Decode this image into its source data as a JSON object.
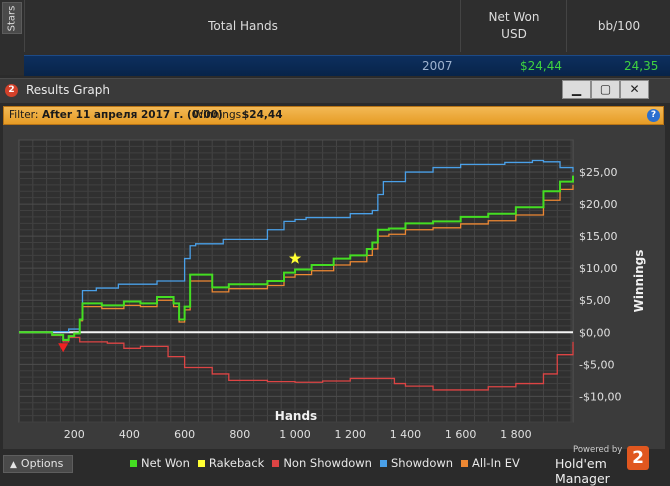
{
  "stats_table": {
    "side_tab": "Stars",
    "columns": [
      "Total Hands",
      "Net Won\nUSD",
      "bb/100"
    ],
    "summary": {
      "total_hands": "2007",
      "net_won": "$24,44",
      "bb100": "24,35"
    }
  },
  "window": {
    "title": "Results Graph",
    "icon": "2",
    "buttons": {
      "minimize": "▁",
      "maximize": "▢",
      "close": "✕"
    }
  },
  "filter": {
    "label": "Filter:",
    "text": "After 11 апреля 2017 г. (0:00)",
    "winnings_label": "Winnings:",
    "winnings": "$24,44"
  },
  "footer": {
    "options_label": "Options",
    "powered_by": "Powered by",
    "brand": "Hold'em Manager",
    "brand_logo": "2"
  },
  "colors": {
    "net_won": "#44dd22",
    "rakeback": "#ffff33",
    "non_showdown": "#dd4444",
    "showdown": "#4aa0e8",
    "all_in_ev": "#ee8833"
  },
  "chart_data": {
    "type": "line",
    "xlabel": "Hands",
    "ylabel": "Winnings",
    "xlim": [
      0,
      2007
    ],
    "ylim": [
      -14,
      30
    ],
    "x_ticks": [
      200,
      400,
      600,
      800,
      1000,
      1200,
      1400,
      1600,
      1800
    ],
    "x_tick_labels": [
      "200",
      "400",
      "600",
      "800",
      "1 000",
      "1 200",
      "1 400",
      "1 600",
      "1 800"
    ],
    "y_ticks": [
      -10,
      -5,
      0,
      5,
      10,
      15,
      20,
      25
    ],
    "y_tick_labels": [
      "-$10,00",
      "-$5,00",
      "$0,00",
      "$5,00",
      "$10,00",
      "$15,00",
      "$20,00",
      "$25,00"
    ],
    "grid": true,
    "legend_position": "bottom",
    "series": [
      {
        "name": "Net Won",
        "color": "#44dd22",
        "x": [
          0,
          60,
          120,
          160,
          180,
          200,
          220,
          230,
          300,
          380,
          440,
          500,
          560,
          580,
          600,
          620,
          700,
          760,
          900,
          960,
          1000,
          1060,
          1140,
          1200,
          1260,
          1280,
          1300,
          1340,
          1400,
          1500,
          1600,
          1700,
          1800,
          1900,
          1960,
          2007
        ],
        "y": [
          0,
          0,
          -0.4,
          -1.2,
          -0.6,
          -0.2,
          2.0,
          4.5,
          4.2,
          4.8,
          4.5,
          5.5,
          4.5,
          2.0,
          4.0,
          9.0,
          7.0,
          7.5,
          8.0,
          9.3,
          9.8,
          10.5,
          11.5,
          12.0,
          13.0,
          14.0,
          16.0,
          16.2,
          17.0,
          17.3,
          18.0,
          18.5,
          19.5,
          22.0,
          23.5,
          24.44
        ]
      },
      {
        "name": "Rakeback",
        "color": "#ffff33",
        "x": [],
        "y": []
      },
      {
        "name": "Non Showdown",
        "color": "#dd4444",
        "x": [
          0,
          60,
          120,
          160,
          180,
          220,
          320,
          380,
          440,
          540,
          600,
          700,
          760,
          900,
          1000,
          1100,
          1200,
          1300,
          1360,
          1400,
          1500,
          1600,
          1700,
          1800,
          1900,
          1950,
          2007
        ],
        "y": [
          0,
          0,
          -0.5,
          -1.5,
          -0.8,
          -1.5,
          -1.7,
          -2.5,
          -2.2,
          -3.8,
          -5.5,
          -6.5,
          -7.5,
          -7.7,
          -7.8,
          -7.6,
          -7.2,
          -7.2,
          -8.0,
          -8.4,
          -9.0,
          -9.0,
          -8.5,
          -8.0,
          -6.5,
          -3.5,
          -1.5
        ]
      },
      {
        "name": "Showdown",
        "color": "#4aa0e8",
        "x": [
          0,
          60,
          120,
          180,
          220,
          230,
          280,
          360,
          440,
          500,
          600,
          620,
          640,
          740,
          900,
          960,
          1000,
          1040,
          1100,
          1200,
          1280,
          1300,
          1320,
          1400,
          1500,
          1600,
          1760,
          1860,
          1900,
          1960,
          2007
        ],
        "y": [
          0,
          0,
          0.1,
          0.5,
          2.0,
          6.5,
          6.9,
          7.5,
          7.5,
          8.0,
          11.5,
          13.5,
          13.8,
          14.5,
          16.0,
          17.3,
          17.6,
          17.9,
          17.9,
          18.5,
          19.0,
          21.5,
          23.5,
          25.0,
          25.7,
          26.2,
          26.5,
          26.8,
          26.6,
          25.7,
          25.0
        ]
      },
      {
        "name": "All-In EV",
        "color": "#ee8833",
        "x": [
          0,
          60,
          120,
          160,
          180,
          200,
          220,
          230,
          300,
          380,
          440,
          500,
          560,
          580,
          600,
          620,
          700,
          760,
          900,
          960,
          1000,
          1060,
          1140,
          1200,
          1260,
          1280,
          1300,
          1340,
          1400,
          1500,
          1600,
          1700,
          1800,
          1900,
          1960,
          2007
        ],
        "y": [
          0,
          0,
          -0.4,
          -1.2,
          -0.6,
          -0.2,
          1.8,
          4.0,
          3.7,
          4.2,
          4.0,
          5.0,
          4.0,
          1.6,
          3.5,
          8.0,
          6.3,
          6.8,
          7.3,
          8.6,
          9.0,
          9.6,
          10.5,
          11.0,
          12.0,
          13.0,
          15.0,
          15.3,
          16.0,
          16.3,
          16.9,
          17.4,
          18.3,
          20.6,
          22.3,
          23.0
        ]
      }
    ],
    "markers": [
      {
        "type": "star",
        "x": 1000,
        "y": 11.5,
        "color": "#ffff33"
      },
      {
        "type": "down-triangle",
        "x": 160,
        "y": -2.5,
        "color": "#ee2222"
      }
    ]
  }
}
